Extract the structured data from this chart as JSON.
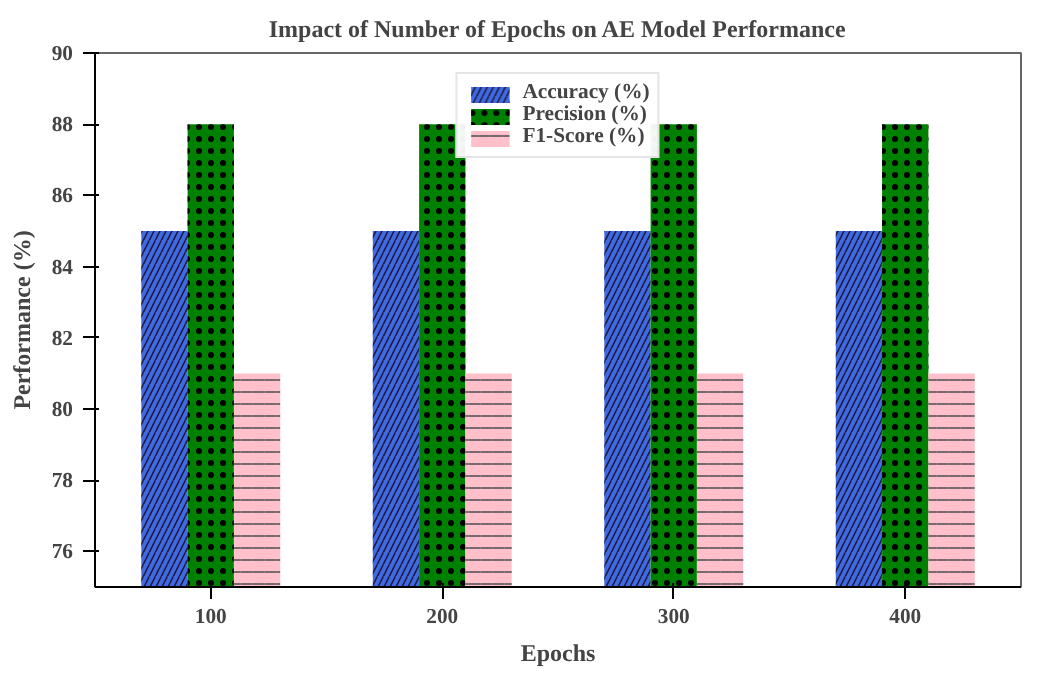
{
  "chart_data": {
    "type": "bar",
    "title": "Impact of Number of Epochs on AE Model Performance",
    "xlabel": "Epochs",
    "ylabel": "Performance (%)",
    "categories": [
      "100",
      "200",
      "300",
      "400"
    ],
    "series": [
      {
        "name": "Accuracy (%)",
        "color": "#4169e1",
        "values": [
          85,
          85,
          85,
          85
        ]
      },
      {
        "name": "Precision (%)",
        "color": "#008000",
        "values": [
          88,
          88,
          88,
          88
        ]
      },
      {
        "name": "F1-Score (%)",
        "color": "#ffc0cb",
        "values": [
          81,
          81,
          81,
          81
        ]
      }
    ],
    "ylim": [
      75,
      90
    ],
    "yticks": [
      76,
      78,
      80,
      82,
      84,
      86,
      88,
      90
    ],
    "grid": false,
    "legend": "top"
  }
}
